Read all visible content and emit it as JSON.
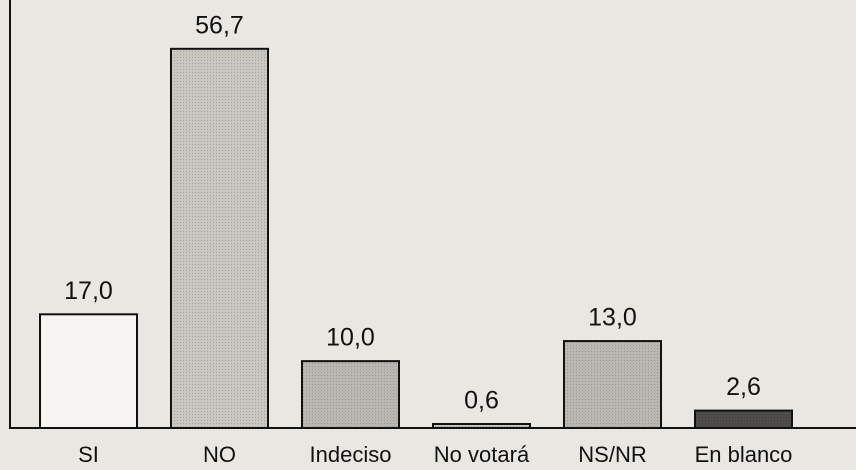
{
  "chart_data": {
    "type": "bar",
    "categories": [
      "SI",
      "NO",
      "Indeciso",
      "No votará",
      "NS/NR",
      "En blanco"
    ],
    "values": [
      17.0,
      56.7,
      10.0,
      0.6,
      13.0,
      2.6
    ],
    "value_labels": [
      "17,0",
      "56,7",
      "10,0",
      "0,6",
      "13,0",
      "2,6"
    ],
    "colors": [
      "#f6f5f1",
      "#c9c7c1",
      "#b9b7b1",
      "#c6c4be",
      "#b9b7b1",
      "#4e4d4a"
    ],
    "ylim": [
      0,
      64
    ]
  }
}
